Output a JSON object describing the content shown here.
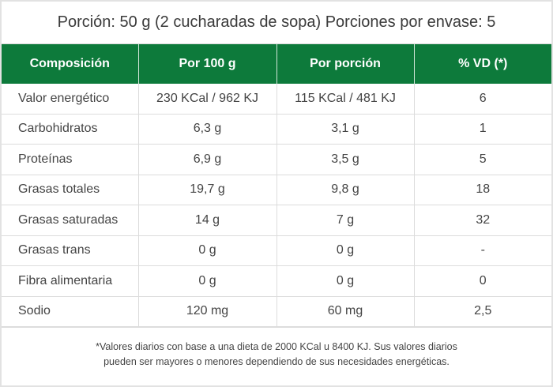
{
  "title": "Porción: 50 g (2 cucharadas de sopa) Porciones por envase: 5",
  "table": {
    "headers": [
      "Composición",
      "Por 100 g",
      "Por porción",
      "% VD (*)"
    ],
    "rows": [
      [
        "Valor energético",
        "230 KCal / 962 KJ",
        "115 KCal / 481 KJ",
        "6"
      ],
      [
        "Carbohidratos",
        "6,3 g",
        "3,1 g",
        "1"
      ],
      [
        "Proteínas",
        "6,9 g",
        "3,5 g",
        "5"
      ],
      [
        "Grasas totales",
        "19,7 g",
        "9,8 g",
        "18"
      ],
      [
        "Grasas saturadas",
        "14 g",
        "7 g",
        "32"
      ],
      [
        "Grasas trans",
        "0 g",
        "0 g",
        "-"
      ],
      [
        "Fibra alimentaria",
        "0 g",
        "0 g",
        "0"
      ],
      [
        "Sodio",
        "120 mg",
        "60 mg",
        "2,5"
      ]
    ]
  },
  "footnote": {
    "line1": "*Valores diarios con base a una dieta de 2000 KCal u 8400 KJ. Sus valores diarios",
    "line2": "pueden ser mayores o menores dependiendo de sus necesidades energéticas."
  },
  "colors": {
    "header_bg": "#0d7a3b",
    "header_text": "#ffffff",
    "body_text": "#444444"
  }
}
